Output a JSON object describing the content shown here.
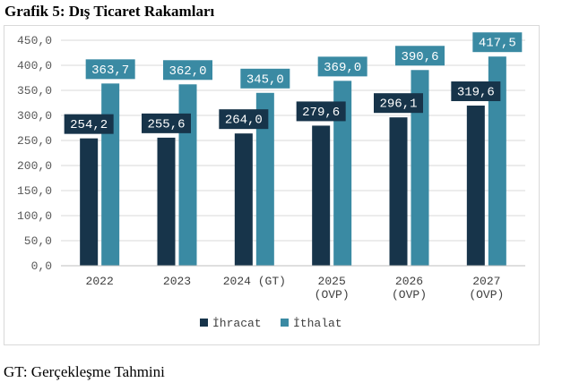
{
  "page": {
    "title": "Grafik 5: Dış Ticaret Rakamları",
    "footnote": "GT: Gerçekleşme Tahmini"
  },
  "chart_data": {
    "type": "bar",
    "title": "",
    "xlabel": "",
    "ylabel": "",
    "categories": [
      [
        "2022"
      ],
      [
        "2023"
      ],
      [
        "2024 (GT)"
      ],
      [
        "2025",
        "(OVP)"
      ],
      [
        "2026",
        "(OVP)"
      ],
      [
        "2027",
        "(OVP)"
      ]
    ],
    "series": [
      {
        "name": "İhracat",
        "values": [
          254.2,
          255.6,
          264.0,
          279.6,
          296.1,
          319.6
        ],
        "color": "#17344a"
      },
      {
        "name": "İthalat",
        "values": [
          363.7,
          362.0,
          345.0,
          369.0,
          390.6,
          417.5
        ],
        "color": "#3a8aa3"
      }
    ],
    "value_labels": {
      "İhracat": [
        "254,2",
        "255,6",
        "264,0",
        "279,6",
        "296,1",
        "319,6"
      ],
      "İthalat": [
        "363,7",
        "362,0",
        "345,0",
        "369,0",
        "390,6",
        "417,5"
      ]
    },
    "ylim": [
      0,
      450
    ],
    "yticks": [
      0,
      50,
      100,
      150,
      200,
      250,
      300,
      350,
      400,
      450
    ],
    "ytick_labels": [
      "0,0",
      "50,0",
      "100,0",
      "150,0",
      "200,0",
      "250,0",
      "300,0",
      "350,0",
      "400,0",
      "450,0"
    ],
    "grid": true,
    "legend": "bottom-center"
  }
}
